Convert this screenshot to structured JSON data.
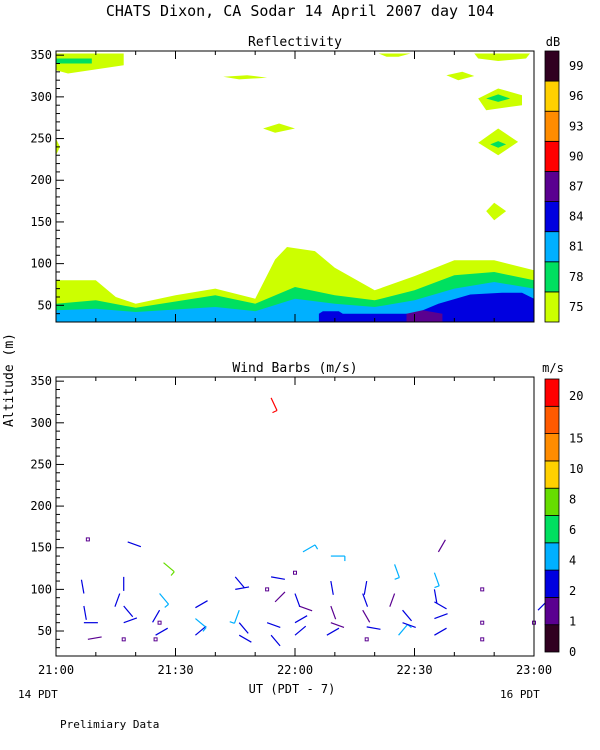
{
  "title": "CHATS Dixon, CA  Sodar  14 April 2007  day 104",
  "footer_note": "Prelimiary Data",
  "x_axis": {
    "label": "UT  (PDT - 7)",
    "start_label": "14 PDT",
    "end_label": "16 PDT"
  },
  "y_axis_label": "Altitude (m)",
  "colors": {
    "reflectivity_scale": [
      "#ccff00",
      "#00e060",
      "#00b0ff",
      "#0000e0",
      "#5a0090",
      "#ff0000",
      "#ff8c00",
      "#ffd000",
      "#300020"
    ],
    "wind_scale": [
      "#300020",
      "#5a0090",
      "#0000e0",
      "#00b0ff",
      "#00e060",
      "#66dd00",
      "#ffd000",
      "#ff8c00",
      "#ff5a00",
      "#ff0000"
    ]
  },
  "chart_data": [
    {
      "type": "contour",
      "title": "Reflectivity",
      "xlabel": "UT  (PDT - 7)",
      "ylabel": "Altitude (m)",
      "x_ticks": [
        "21:00",
        "21:30",
        "22:00",
        "22:30",
        "23:00"
      ],
      "y_ticks": [
        50,
        100,
        150,
        200,
        250,
        300,
        350
      ],
      "xlim_minutes_ut": [
        1260,
        1380
      ],
      "ylim": [
        30,
        355
      ],
      "colorbar": {
        "unit": "dB",
        "ticks": [
          75,
          78,
          81,
          84,
          87,
          90,
          93,
          96,
          99
        ]
      },
      "layers": [
        {
          "level_dB": 75,
          "top_profile": [
            [
              1260,
              80
            ],
            [
              1270,
              80
            ],
            [
              1275,
              60
            ],
            [
              1280,
              52
            ],
            [
              1290,
              62
            ],
            [
              1300,
              70
            ],
            [
              1310,
              58
            ],
            [
              1315,
              105
            ],
            [
              1318,
              120
            ],
            [
              1325,
              115
            ],
            [
              1330,
              95
            ],
            [
              1340,
              68
            ],
            [
              1350,
              85
            ],
            [
              1360,
              104
            ],
            [
              1370,
              104
            ],
            [
              1380,
              92
            ]
          ],
          "patches": [
            [
              [
                1260,
                352
              ],
              [
                1277,
                352
              ],
              [
                1277,
                338
              ],
              [
                1263,
                328
              ],
              [
                1260,
                332
              ]
            ],
            [
              [
                1341,
                352
              ],
              [
                1349,
                352
              ],
              [
                1346,
                348
              ],
              [
                1343,
                348
              ]
            ],
            [
              [
                1365,
                352
              ],
              [
                1379,
                352
              ],
              [
                1378,
                346
              ],
              [
                1371,
                343
              ],
              [
                1366,
                346
              ]
            ],
            [
              [
                1302,
                324
              ],
              [
                1308,
                326
              ],
              [
                1313,
                323
              ],
              [
                1306,
                321
              ]
            ],
            [
              [
                1358,
                326
              ],
              [
                1362,
                330
              ],
              [
                1365,
                325
              ],
              [
                1361,
                320
              ]
            ],
            [
              [
                1366,
                298
              ],
              [
                1371,
                310
              ],
              [
                1377,
                302
              ],
              [
                1377,
                290
              ],
              [
                1368,
                284
              ]
            ],
            [
              [
                1366,
                245
              ],
              [
                1371,
                262
              ],
              [
                1376,
                246
              ],
              [
                1371,
                230
              ]
            ],
            [
              [
                1312,
                262
              ],
              [
                1316,
                268
              ],
              [
                1320,
                262
              ],
              [
                1315,
                257
              ]
            ],
            [
              [
                1368,
                163
              ],
              [
                1370,
                173
              ],
              [
                1373,
                163
              ],
              [
                1370,
                152
              ]
            ],
            [
              [
                1260,
                250
              ],
              [
                1261,
                240
              ],
              [
                1260,
                230
              ]
            ]
          ]
        },
        {
          "level_dB": 78,
          "top_profile": [
            [
              1260,
              52
            ],
            [
              1270,
              56
            ],
            [
              1280,
              47
            ],
            [
              1300,
              62
            ],
            [
              1310,
              52
            ],
            [
              1320,
              72
            ],
            [
              1330,
              62
            ],
            [
              1340,
              56
            ],
            [
              1350,
              68
            ],
            [
              1360,
              86
            ],
            [
              1370,
              90
            ],
            [
              1380,
              80
            ]
          ],
          "patches": [
            [
              [
                1260,
                346
              ],
              [
                1269,
                346
              ],
              [
                1269,
                340
              ],
              [
                1260,
                340
              ]
            ],
            [
              [
                1368,
                298
              ],
              [
                1371,
                303
              ],
              [
                1374,
                298
              ],
              [
                1371,
                294
              ]
            ],
            [
              [
                1369,
                243
              ],
              [
                1371,
                247
              ],
              [
                1373,
                243
              ],
              [
                1371,
                239
              ]
            ]
          ]
        },
        {
          "level_dB": 81,
          "top_profile": [
            [
              1260,
              44
            ],
            [
              1270,
              46
            ],
            [
              1280,
              42
            ],
            [
              1300,
              48
            ],
            [
              1310,
              43
            ],
            [
              1320,
              58
            ],
            [
              1330,
              52
            ],
            [
              1340,
              48
            ],
            [
              1350,
              56
            ],
            [
              1360,
              70
            ],
            [
              1370,
              78
            ],
            [
              1380,
              70
            ]
          ]
        },
        {
          "level_dB": 84,
          "top_profile": [
            [
              1326,
              40
            ],
            [
              1327,
              43
            ],
            [
              1331,
              43
            ],
            [
              1332,
              40
            ],
            [
              1350,
              40
            ],
            [
              1356,
              52
            ],
            [
              1364,
              63
            ],
            [
              1372,
              65
            ],
            [
              1377,
              65
            ],
            [
              1380,
              58
            ]
          ]
        },
        {
          "level_dB": 87,
          "top_profile": [
            [
              1348,
              40
            ],
            [
              1352,
              44
            ],
            [
              1357,
              40
            ]
          ]
        }
      ]
    },
    {
      "type": "wind_barbs",
      "title": "Wind Barbs (m/s)",
      "xlabel": "UT  (PDT - 7)",
      "ylabel": "Altitude (m)",
      "x_ticks": [
        "21:00",
        "21:30",
        "22:00",
        "22:30",
        "23:00"
      ],
      "y_ticks": [
        50,
        100,
        150,
        200,
        250,
        300,
        350
      ],
      "xlim_minutes_ut": [
        1260,
        1380
      ],
      "ylim": [
        20,
        355
      ],
      "colorbar": {
        "unit": "m/s",
        "ticks": [
          0,
          1,
          2,
          4,
          6,
          8,
          10,
          15,
          20
        ]
      },
      "barbs": [
        {
          "time": 1268,
          "alt": 40,
          "speed": 0.5,
          "dir": 80
        },
        {
          "time": 1267,
          "alt": 60,
          "speed": 2,
          "dir": 90
        },
        {
          "time": 1267,
          "alt": 80,
          "speed": 2,
          "dir": 170
        },
        {
          "time": 1267,
          "alt": 95,
          "speed": 2,
          "dir": 350
        },
        {
          "time": 1268,
          "alt": 160,
          "speed": 0.5,
          "dir": 0,
          "calm": true
        },
        {
          "time": 1277,
          "alt": 40,
          "speed": 0.5,
          "dir": 0,
          "calm": true
        },
        {
          "time": 1277,
          "alt": 60,
          "speed": 2,
          "dir": 70
        },
        {
          "time": 1277,
          "alt": 80,
          "speed": 2,
          "dir": 140
        },
        {
          "time": 1276,
          "alt": 95,
          "speed": 2,
          "dir": 200
        },
        {
          "time": 1277,
          "alt": 115,
          "speed": 2,
          "dir": 180
        },
        {
          "time": 1278,
          "alt": 157,
          "speed": 2,
          "dir": 110
        },
        {
          "time": 1285,
          "alt": 40,
          "speed": 0.5,
          "dir": 0,
          "calm": true
        },
        {
          "time": 1285,
          "alt": 45,
          "speed": 2,
          "dir": 60
        },
        {
          "time": 1286,
          "alt": 60,
          "speed": 0.5,
          "dir": 0,
          "calm": true
        },
        {
          "time": 1286,
          "alt": 75,
          "speed": 2,
          "dir": 210
        },
        {
          "time": 1286,
          "alt": 95,
          "speed": 4,
          "dir": 140
        },
        {
          "time": 1287,
          "alt": 132,
          "speed": 8,
          "dir": 130
        },
        {
          "time": 1295,
          "alt": 45,
          "speed": 2,
          "dir": 50
        },
        {
          "time": 1295,
          "alt": 65,
          "speed": 4,
          "dir": 130
        },
        {
          "time": 1295,
          "alt": 78,
          "speed": 2,
          "dir": 60
        },
        {
          "time": 1306,
          "alt": 45,
          "speed": 2,
          "dir": 120
        },
        {
          "time": 1306,
          "alt": 60,
          "speed": 2,
          "dir": 140
        },
        {
          "time": 1306,
          "alt": 75,
          "speed": 4,
          "dir": 200
        },
        {
          "time": 1305,
          "alt": 100,
          "speed": 2,
          "dir": 80
        },
        {
          "time": 1305,
          "alt": 115,
          "speed": 2,
          "dir": 140
        },
        {
          "time": 1314,
          "alt": 45,
          "speed": 2,
          "dir": 140
        },
        {
          "time": 1313,
          "alt": 60,
          "speed": 2,
          "dir": 110
        },
        {
          "time": 1315,
          "alt": 85,
          "speed": 1,
          "dir": 45
        },
        {
          "time": 1313,
          "alt": 100,
          "speed": 0.5,
          "dir": 0,
          "calm": true
        },
        {
          "time": 1314,
          "alt": 115,
          "speed": 2,
          "dir": 100
        },
        {
          "time": 1314,
          "alt": 330,
          "speed": 20,
          "dir": 155
        },
        {
          "time": 1320,
          "alt": 45,
          "speed": 2,
          "dir": 50
        },
        {
          "time": 1320,
          "alt": 60,
          "speed": 2,
          "dir": 60
        },
        {
          "time": 1321,
          "alt": 80,
          "speed": 1,
          "dir": 110
        },
        {
          "time": 1320,
          "alt": 95,
          "speed": 2,
          "dir": 160
        },
        {
          "time": 1320,
          "alt": 120,
          "speed": 0.5,
          "dir": 0,
          "calm": true
        },
        {
          "time": 1322,
          "alt": 145,
          "speed": 4,
          "dir": 60
        },
        {
          "time": 1328,
          "alt": 45,
          "speed": 2,
          "dir": 60
        },
        {
          "time": 1329,
          "alt": 60,
          "speed": 1,
          "dir": 110
        },
        {
          "time": 1329,
          "alt": 80,
          "speed": 1,
          "dir": 160
        },
        {
          "time": 1329,
          "alt": 110,
          "speed": 2,
          "dir": 170
        },
        {
          "time": 1329,
          "alt": 140,
          "speed": 4,
          "dir": 90
        },
        {
          "time": 1338,
          "alt": 40,
          "speed": 0.5,
          "dir": 0,
          "calm": true
        },
        {
          "time": 1338,
          "alt": 55,
          "speed": 2,
          "dir": 100
        },
        {
          "time": 1337,
          "alt": 75,
          "speed": 1,
          "dir": 150
        },
        {
          "time": 1337,
          "alt": 95,
          "speed": 2,
          "dir": 160
        },
        {
          "time": 1338,
          "alt": 110,
          "speed": 2,
          "dir": 190
        },
        {
          "time": 1346,
          "alt": 45,
          "speed": 4,
          "dir": 40
        },
        {
          "time": 1347,
          "alt": 60,
          "speed": 2,
          "dir": 110
        },
        {
          "time": 1347,
          "alt": 75,
          "speed": 2,
          "dir": 140
        },
        {
          "time": 1345,
          "alt": 95,
          "speed": 1,
          "dir": 200
        },
        {
          "time": 1345,
          "alt": 130,
          "speed": 4,
          "dir": 160
        },
        {
          "time": 1355,
          "alt": 45,
          "speed": 2,
          "dir": 60
        },
        {
          "time": 1355,
          "alt": 65,
          "speed": 2,
          "dir": 70
        },
        {
          "time": 1355,
          "alt": 85,
          "speed": 2,
          "dir": 120
        },
        {
          "time": 1355,
          "alt": 100,
          "speed": 2,
          "dir": 170
        },
        {
          "time": 1355,
          "alt": 120,
          "speed": 4,
          "dir": 160
        },
        {
          "time": 1356,
          "alt": 145,
          "speed": 1,
          "dir": 30
        },
        {
          "time": 1367,
          "alt": 40,
          "speed": 0.5,
          "dir": 0,
          "calm": true
        },
        {
          "time": 1367,
          "alt": 60,
          "speed": 0.5,
          "dir": 0,
          "calm": true
        },
        {
          "time": 1367,
          "alt": 100,
          "speed": 0.5,
          "dir": 0,
          "calm": true
        },
        {
          "time": 1380,
          "alt": 60,
          "speed": 0.5,
          "dir": 0,
          "calm": true
        },
        {
          "time": 1381,
          "alt": 75,
          "speed": 2,
          "dir": 45
        }
      ]
    }
  ]
}
